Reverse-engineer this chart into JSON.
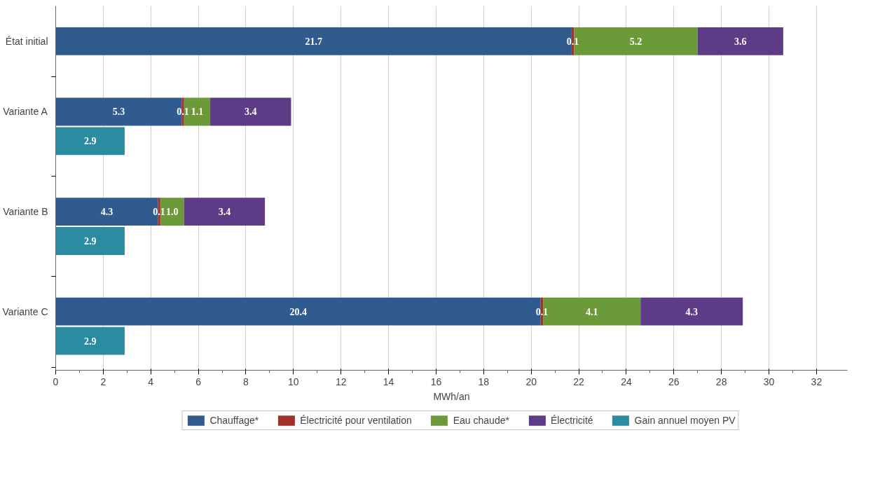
{
  "chart_data": {
    "type": "bar",
    "orientation": "horizontal",
    "stacked": true,
    "data_labels": true,
    "xlabel": "MWh/an",
    "categories": [
      "État initial",
      "Variante A",
      null,
      "Variante B",
      null,
      "Variante C",
      null
    ],
    "xlim": [
      0,
      33.3
    ],
    "xticks": [
      0,
      2,
      4,
      6,
      8,
      10,
      12,
      14,
      16,
      18,
      20,
      22,
      24,
      26,
      28,
      30,
      32
    ],
    "grid": "x",
    "legend": "bottom",
    "series": [
      {
        "name": "Chauffage*",
        "color": "#2f5b8f",
        "values": [
          21.7,
          5.3,
          null,
          4.3,
          null,
          20.4,
          null
        ]
      },
      {
        "name": "Électricité pour ventilation",
        "color": "#a3302b",
        "values": [
          0.1,
          0.1,
          null,
          0.1,
          null,
          0.1,
          null
        ]
      },
      {
        "name": "Eau chaude*",
        "color": "#6c9a38",
        "values": [
          5.2,
          1.1,
          null,
          1.0,
          null,
          4.1,
          null
        ],
        "value_labels": [
          "5.2",
          "1.1",
          null,
          "1.0",
          null,
          "4.1",
          null
        ]
      },
      {
        "name": "Électricité",
        "color": "#5d3b86",
        "values": [
          3.6,
          3.4,
          null,
          3.4,
          null,
          4.3,
          null
        ]
      },
      {
        "name": "Gain annuel moyen PV",
        "color": "#2b8ba1",
        "values": [
          null,
          null,
          2.9,
          null,
          2.9,
          null,
          2.9
        ]
      }
    ]
  }
}
